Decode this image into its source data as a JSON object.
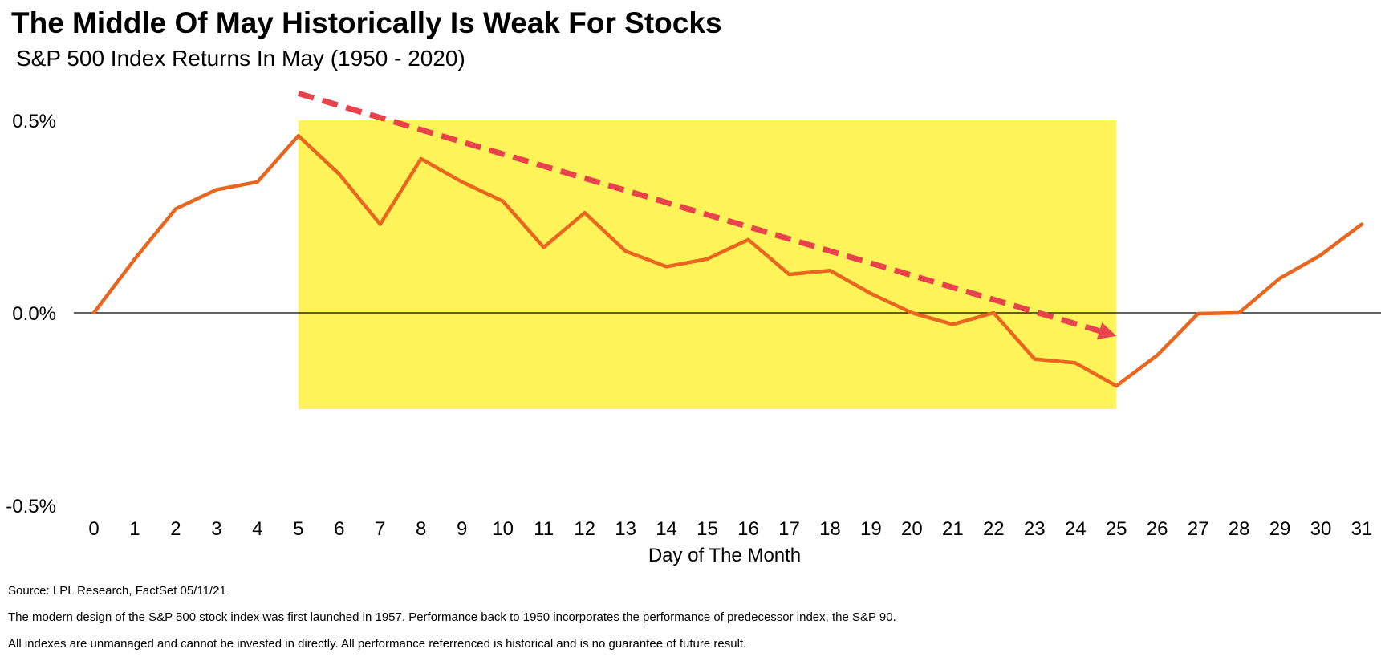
{
  "title": "The Middle Of May Historically Is Weak For Stocks",
  "subtitle": "S&P 500 Index Returns In May (1950 - 2020)",
  "notes": {
    "source": "Source: LPL Research, FactSet 05/11/21",
    "design": "The modern design of the S&P 500 stock index was first launched in 1957. Performance back to 1950 incorporates the performance of predecessor index, the S&P 90.",
    "disclaimer": "All indexes are unmanaged and cannot be invested in directly. All performance referrenced is historical and is no guarantee of future result."
  },
  "colors": {
    "line": "#E8661E",
    "highlight": "#FFF35A",
    "trend_arrow": "#E8434C",
    "zero_line": "#000000"
  },
  "chart_data": {
    "type": "line",
    "xlabel": "Day of The Month",
    "ylabel": "",
    "x": [
      0,
      1,
      2,
      3,
      4,
      5,
      6,
      7,
      8,
      9,
      10,
      11,
      12,
      13,
      14,
      15,
      16,
      17,
      18,
      19,
      20,
      21,
      22,
      23,
      24,
      25,
      26,
      27,
      28,
      29,
      30,
      31
    ],
    "series": [
      {
        "values": [
          0.0,
          0.14,
          0.27,
          0.32,
          0.34,
          0.46,
          0.36,
          0.23,
          0.4,
          0.34,
          0.29,
          0.17,
          0.26,
          0.16,
          0.12,
          0.14,
          0.19,
          0.1,
          0.11,
          0.05,
          0.0,
          -0.03,
          0.0,
          -0.12,
          -0.13,
          -0.19,
          -0.11,
          -0.002,
          0.0,
          0.09,
          0.15,
          0.23
        ]
      }
    ],
    "yticks": [
      0.5,
      0.0,
      -0.5
    ],
    "ytick_labels": [
      "0.5%",
      "0.0%",
      "-0.5%"
    ],
    "ylim": [
      -0.5,
      0.5
    ],
    "xlim": [
      0,
      31
    ],
    "grid": false,
    "highlight_region": {
      "x_start": 5,
      "x_end": 25,
      "y_top": 0.5,
      "y_bottom": -0.25
    },
    "trend_arrow": {
      "from": {
        "x": 5,
        "y": 0.57
      },
      "to": {
        "x": 25,
        "y": -0.06
      }
    }
  }
}
